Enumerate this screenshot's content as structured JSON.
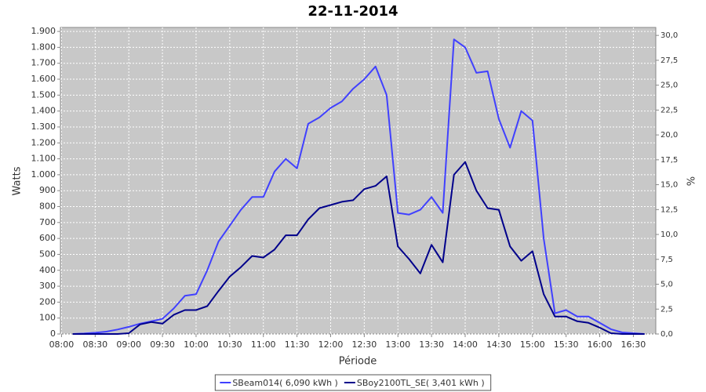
{
  "chart_data": {
    "type": "line",
    "title": "22-11-2014",
    "x_label": "Période",
    "y_label": "Watts",
    "y2_label": "%",
    "x": [
      "08:10",
      "08:20",
      "08:30",
      "08:40",
      "08:50",
      "09:00",
      "09:10",
      "09:20",
      "09:30",
      "09:40",
      "09:50",
      "10:00",
      "10:10",
      "10:20",
      "10:30",
      "10:40",
      "10:50",
      "11:00",
      "11:10",
      "11:20",
      "11:30",
      "11:40",
      "11:50",
      "12:00",
      "12:10",
      "12:20",
      "12:30",
      "12:40",
      "12:50",
      "13:00",
      "13:10",
      "13:20",
      "13:30",
      "13:40",
      "13:50",
      "14:00",
      "14:10",
      "14:20",
      "14:30",
      "14:40",
      "14:50",
      "15:00",
      "15:10",
      "15:20",
      "15:30",
      "15:40",
      "15:50",
      "16:00",
      "16:10",
      "16:20",
      "16:30",
      "16:40"
    ],
    "xlim": [
      "07:59",
      "16:50"
    ],
    "xticks": [
      "08:00",
      "08:30",
      "09:00",
      "09:30",
      "10:00",
      "10:30",
      "11:00",
      "11:30",
      "12:00",
      "12:30",
      "13:00",
      "13:30",
      "14:00",
      "14:30",
      "15:00",
      "15:30",
      "16:00",
      "16:30"
    ],
    "ylim": [
      0,
      1925
    ],
    "yticks": [
      0,
      100,
      200,
      300,
      400,
      500,
      600,
      700,
      800,
      900,
      {
        "value": 1000,
        "label": "1.000"
      },
      {
        "value": 1100,
        "label": "1.100"
      },
      {
        "value": 1200,
        "label": "1.200"
      },
      {
        "value": 1300,
        "label": "1.300"
      },
      {
        "value": 1400,
        "label": "1.400"
      },
      {
        "value": 1500,
        "label": "1.500"
      },
      {
        "value": 1600,
        "label": "1.600"
      },
      {
        "value": 1700,
        "label": "1.700"
      },
      {
        "value": 1800,
        "label": "1.800"
      },
      {
        "value": 1900,
        "label": "1.900"
      }
    ],
    "y2lim": [
      0,
      30.8
    ],
    "y2ticks": [
      {
        "value": 0,
        "label": "0,0"
      },
      {
        "value": 2.5,
        "label": "2,5"
      },
      {
        "value": 5,
        "label": "5,0"
      },
      {
        "value": 7.5,
        "label": "7,5"
      },
      {
        "value": 10,
        "label": "10,0"
      },
      {
        "value": 12.5,
        "label": "12,5"
      },
      {
        "value": 15,
        "label": "15,0"
      },
      {
        "value": 17.5,
        "label": "17,5"
      },
      {
        "value": 20,
        "label": "20,0"
      },
      {
        "value": 22.5,
        "label": "22,5"
      },
      {
        "value": 25,
        "label": "25,0"
      },
      {
        "value": 27.5,
        "label": "27,5"
      },
      {
        "value": 30,
        "label": "30,0"
      }
    ],
    "grid": true,
    "series": [
      {
        "name": "SBeam014( 6,090 kWh )",
        "color": "#4040ff",
        "values": [
          0,
          3,
          8,
          15,
          28,
          45,
          65,
          80,
          95,
          160,
          240,
          250,
          400,
          580,
          680,
          780,
          860,
          860,
          1020,
          1100,
          1040,
          1320,
          1360,
          1420,
          1460,
          1540,
          1600,
          1680,
          1500,
          760,
          750,
          780,
          860,
          760,
          1850,
          1800,
          1640,
          1650,
          1350,
          1170,
          1400,
          1340,
          600,
          130,
          150,
          110,
          110,
          70,
          30,
          10,
          5,
          0
        ]
      },
      {
        "name": "SBoy2100TL_SE( 3,401 kWh )",
        "color": "#00008b",
        "values": [
          0,
          0,
          0,
          0,
          0,
          5,
          60,
          75,
          65,
          120,
          150,
          150,
          175,
          270,
          360,
          420,
          490,
          480,
          530,
          620,
          620,
          720,
          790,
          810,
          830,
          840,
          910,
          930,
          990,
          550,
          470,
          380,
          560,
          450,
          1000,
          1080,
          900,
          790,
          780,
          550,
          460,
          520,
          250,
          110,
          110,
          80,
          70,
          40,
          5,
          0,
          0,
          0
        ]
      }
    ]
  }
}
